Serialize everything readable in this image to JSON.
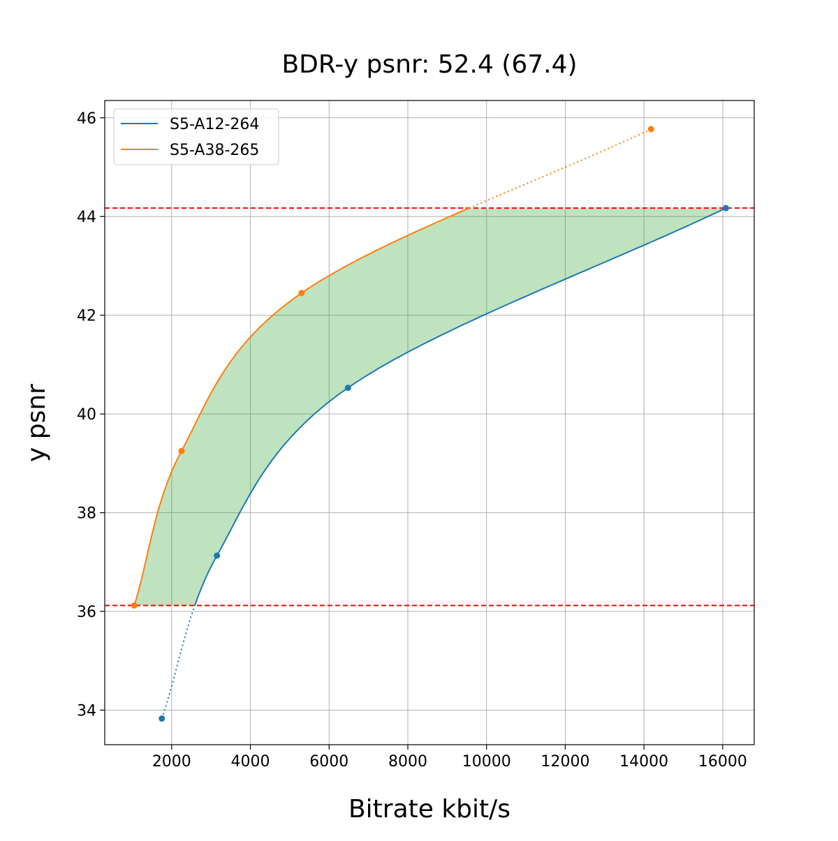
{
  "chart_data": {
    "type": "line",
    "title": "BDR-y psnr: 52.4 (67.4)",
    "xlabel": "Bitrate kbit/s",
    "ylabel": "y psnr",
    "xlim": [
      300,
      16800
    ],
    "ylim": [
      33.3,
      46.35
    ],
    "xticks": [
      2000,
      4000,
      6000,
      8000,
      10000,
      12000,
      14000,
      16000
    ],
    "yticks": [
      34,
      36,
      38,
      40,
      42,
      44,
      46
    ],
    "grid": true,
    "legend_position": "top-left",
    "series": [
      {
        "name": "S5-A12-264",
        "color": "#1f77b4",
        "points": [
          [
            1750,
            33.83
          ],
          [
            3150,
            37.13
          ],
          [
            6480,
            40.53
          ],
          [
            16080,
            44.17
          ]
        ]
      },
      {
        "name": "S5-A38-265",
        "color": "#ff7f0e",
        "points": [
          [
            1050,
            36.12
          ],
          [
            2250,
            39.25
          ],
          [
            5300,
            42.45
          ],
          [
            14180,
            45.77
          ]
        ]
      }
    ],
    "reference_lines": [
      {
        "axis": "y",
        "value": 44.17,
        "color": "#ff0000",
        "style": "dashed"
      },
      {
        "axis": "y",
        "value": 36.12,
        "color": "#ff0000",
        "style": "dashed"
      }
    ],
    "fill_between": {
      "color": "#2ca02c",
      "opacity": 0.3,
      "y_range": [
        36.12,
        44.17
      ]
    }
  }
}
